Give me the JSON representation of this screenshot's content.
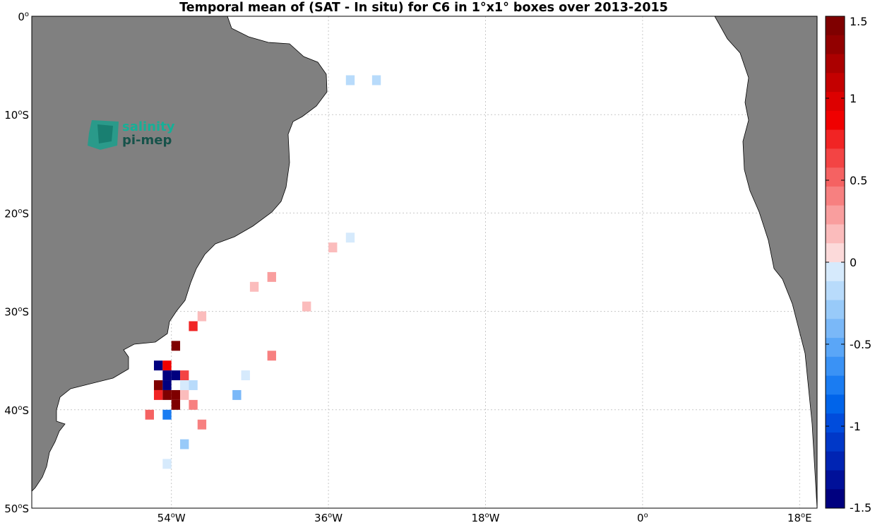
{
  "title": "Temporal mean of (SAT - In situ) for C6 in 1°x1° boxes over 2013-2015",
  "logo": {
    "line1": "salinity",
    "line2": "pi-mep"
  },
  "x_ticks": [
    {
      "lon": -54,
      "deg": "54",
      "hemi": "W"
    },
    {
      "lon": -36,
      "deg": "36",
      "hemi": "W"
    },
    {
      "lon": -18,
      "deg": "18",
      "hemi": "W"
    },
    {
      "lon": 0,
      "deg": "0",
      "hemi": ""
    },
    {
      "lon": 18,
      "deg": "18",
      "hemi": "E"
    }
  ],
  "y_ticks": [
    {
      "lat": 0,
      "deg": "0",
      "hemi": ""
    },
    {
      "lat": -10,
      "deg": "10",
      "hemi": "S"
    },
    {
      "lat": -20,
      "deg": "20",
      "hemi": "S"
    },
    {
      "lat": -30,
      "deg": "30",
      "hemi": "S"
    },
    {
      "lat": -40,
      "deg": "40",
      "hemi": "S"
    },
    {
      "lat": -50,
      "deg": "50",
      "hemi": "S"
    }
  ],
  "colorbar": {
    "min": -1.5,
    "max": 1.5,
    "ticks": [
      {
        "value": 1.5,
        "label": "1.5"
      },
      {
        "value": 1,
        "label": "1"
      },
      {
        "value": 0.5,
        "label": "0.5"
      },
      {
        "value": 0,
        "label": "0"
      },
      {
        "value": -0.5,
        "label": "-0.5"
      },
      {
        "value": -1,
        "label": "-1"
      },
      {
        "value": -1.5,
        "label": "-1.5"
      }
    ]
  },
  "colors": {
    "land": "#808080",
    "grid": "#c8c8c8"
  },
  "chart_data": {
    "type": "heatmap",
    "title": "Temporal mean of (SAT - In situ) for C6 in 1°x1° boxes over 2013-2015",
    "xlim": [
      -70,
      20
    ],
    "ylim": [
      -50,
      0
    ],
    "grid": true,
    "colorbar_range": [
      -1.5,
      1.5
    ],
    "points": [
      {
        "lon": -33.5,
        "lat": -6.5,
        "value": -0.2
      },
      {
        "lon": -30.5,
        "lat": -6.5,
        "value": -0.2
      },
      {
        "lon": -33.5,
        "lat": -22.5,
        "value": -0.1
      },
      {
        "lon": -35.5,
        "lat": -23.5,
        "value": 0.2
      },
      {
        "lon": -42.5,
        "lat": -26.5,
        "value": 0.3
      },
      {
        "lon": -44.5,
        "lat": -27.5,
        "value": 0.2
      },
      {
        "lon": -38.5,
        "lat": -29.5,
        "value": 0.2
      },
      {
        "lon": -50.5,
        "lat": -30.5,
        "value": 0.2
      },
      {
        "lon": -51.5,
        "lat": -31.5,
        "value": 0.7
      },
      {
        "lon": -53.5,
        "lat": -33.5,
        "value": 1.5
      },
      {
        "lon": -42.5,
        "lat": -34.5,
        "value": 0.4
      },
      {
        "lon": -55.5,
        "lat": -35.5,
        "value": -1.5
      },
      {
        "lon": -54.5,
        "lat": -35.5,
        "value": 0.9
      },
      {
        "lon": -54.5,
        "lat": -36.5,
        "value": -1.5
      },
      {
        "lon": -53.5,
        "lat": -36.5,
        "value": -1.5
      },
      {
        "lon": -52.5,
        "lat": -36.5,
        "value": 0.6
      },
      {
        "lon": -45.5,
        "lat": -36.5,
        "value": -0.1
      },
      {
        "lon": -55.5,
        "lat": -37.5,
        "value": 1.5
      },
      {
        "lon": -54.5,
        "lat": -37.5,
        "value": -1.5
      },
      {
        "lon": -52.5,
        "lat": -37.5,
        "value": -0.1
      },
      {
        "lon": -51.5,
        "lat": -37.5,
        "value": -0.2
      },
      {
        "lon": -55.5,
        "lat": -38.5,
        "value": 0.8
      },
      {
        "lon": -54.5,
        "lat": -38.5,
        "value": 1.5
      },
      {
        "lon": -53.5,
        "lat": -38.5,
        "value": 1.5
      },
      {
        "lon": -52.5,
        "lat": -38.5,
        "value": 0.2
      },
      {
        "lon": -46.5,
        "lat": -38.5,
        "value": -0.4
      },
      {
        "lon": -53.5,
        "lat": -39.5,
        "value": 1.5
      },
      {
        "lon": -51.5,
        "lat": -39.5,
        "value": 0.4
      },
      {
        "lon": -56.5,
        "lat": -40.5,
        "value": 0.5
      },
      {
        "lon": -54.5,
        "lat": -40.5,
        "value": -0.7
      },
      {
        "lon": -50.5,
        "lat": -41.5,
        "value": 0.4
      },
      {
        "lon": -52.5,
        "lat": -43.5,
        "value": -0.3
      },
      {
        "lon": -54.5,
        "lat": -45.5,
        "value": -0.1
      }
    ]
  }
}
